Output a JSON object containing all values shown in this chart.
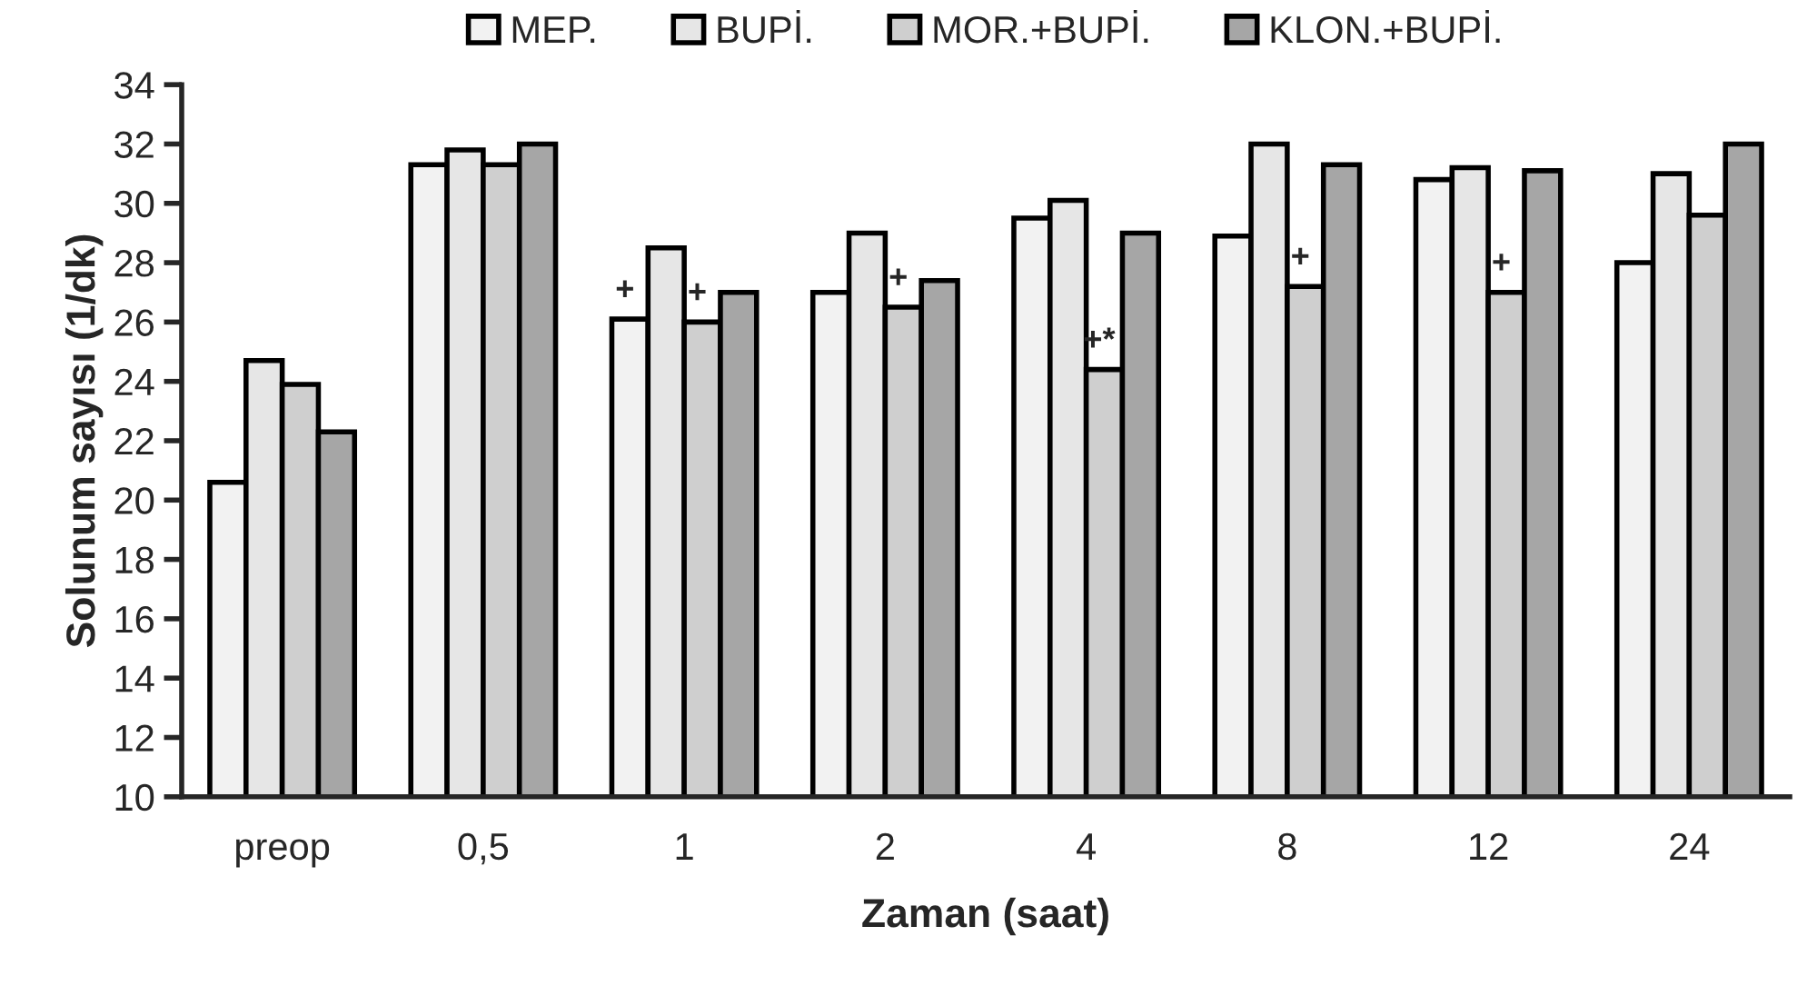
{
  "chart_data": {
    "type": "bar",
    "xlabel": "Zaman (saat)",
    "ylabel": "Solunum sayısı (1/dk)",
    "categories": [
      "preop",
      "0,5",
      "1",
      "2",
      "4",
      "8",
      "12",
      "24"
    ],
    "series": [
      {
        "name": "MEP.",
        "color": "#f2f2f2",
        "values": [
          20.6,
          31.3,
          26.1,
          27.0,
          29.5,
          28.9,
          30.8,
          28.0
        ]
      },
      {
        "name": "BUPİ.",
        "color": "#e6e6e6",
        "values": [
          24.7,
          31.8,
          28.5,
          29.0,
          30.1,
          32.0,
          31.2,
          31.0
        ]
      },
      {
        "name": "MOR.+BUPİ.",
        "color": "#cfcfcf",
        "values": [
          23.9,
          31.3,
          26.0,
          26.5,
          24.4,
          27.2,
          27.0,
          29.6
        ]
      },
      {
        "name": "KLON.+BUPİ.",
        "color": "#a6a6a6",
        "values": [
          22.3,
          32.0,
          27.0,
          27.4,
          29.0,
          31.3,
          31.1,
          32.0
        ]
      }
    ],
    "ylim": [
      10,
      34
    ],
    "yticks": [
      10,
      12,
      14,
      16,
      18,
      20,
      22,
      24,
      26,
      28,
      30,
      32,
      34
    ],
    "annotations": [
      {
        "text": "+",
        "x": "1",
        "y": 26.1
      },
      {
        "text": "+",
        "x": "1",
        "y": 26.0
      },
      {
        "text": "+",
        "x": "2",
        "y": 26.5
      },
      {
        "text": "+*",
        "x": "4",
        "y": 24.4
      },
      {
        "text": "+",
        "x": "8",
        "y": 27.2
      },
      {
        "text": "+",
        "x": "12",
        "y": 27.0
      }
    ],
    "grid": false,
    "legend": "top"
  }
}
